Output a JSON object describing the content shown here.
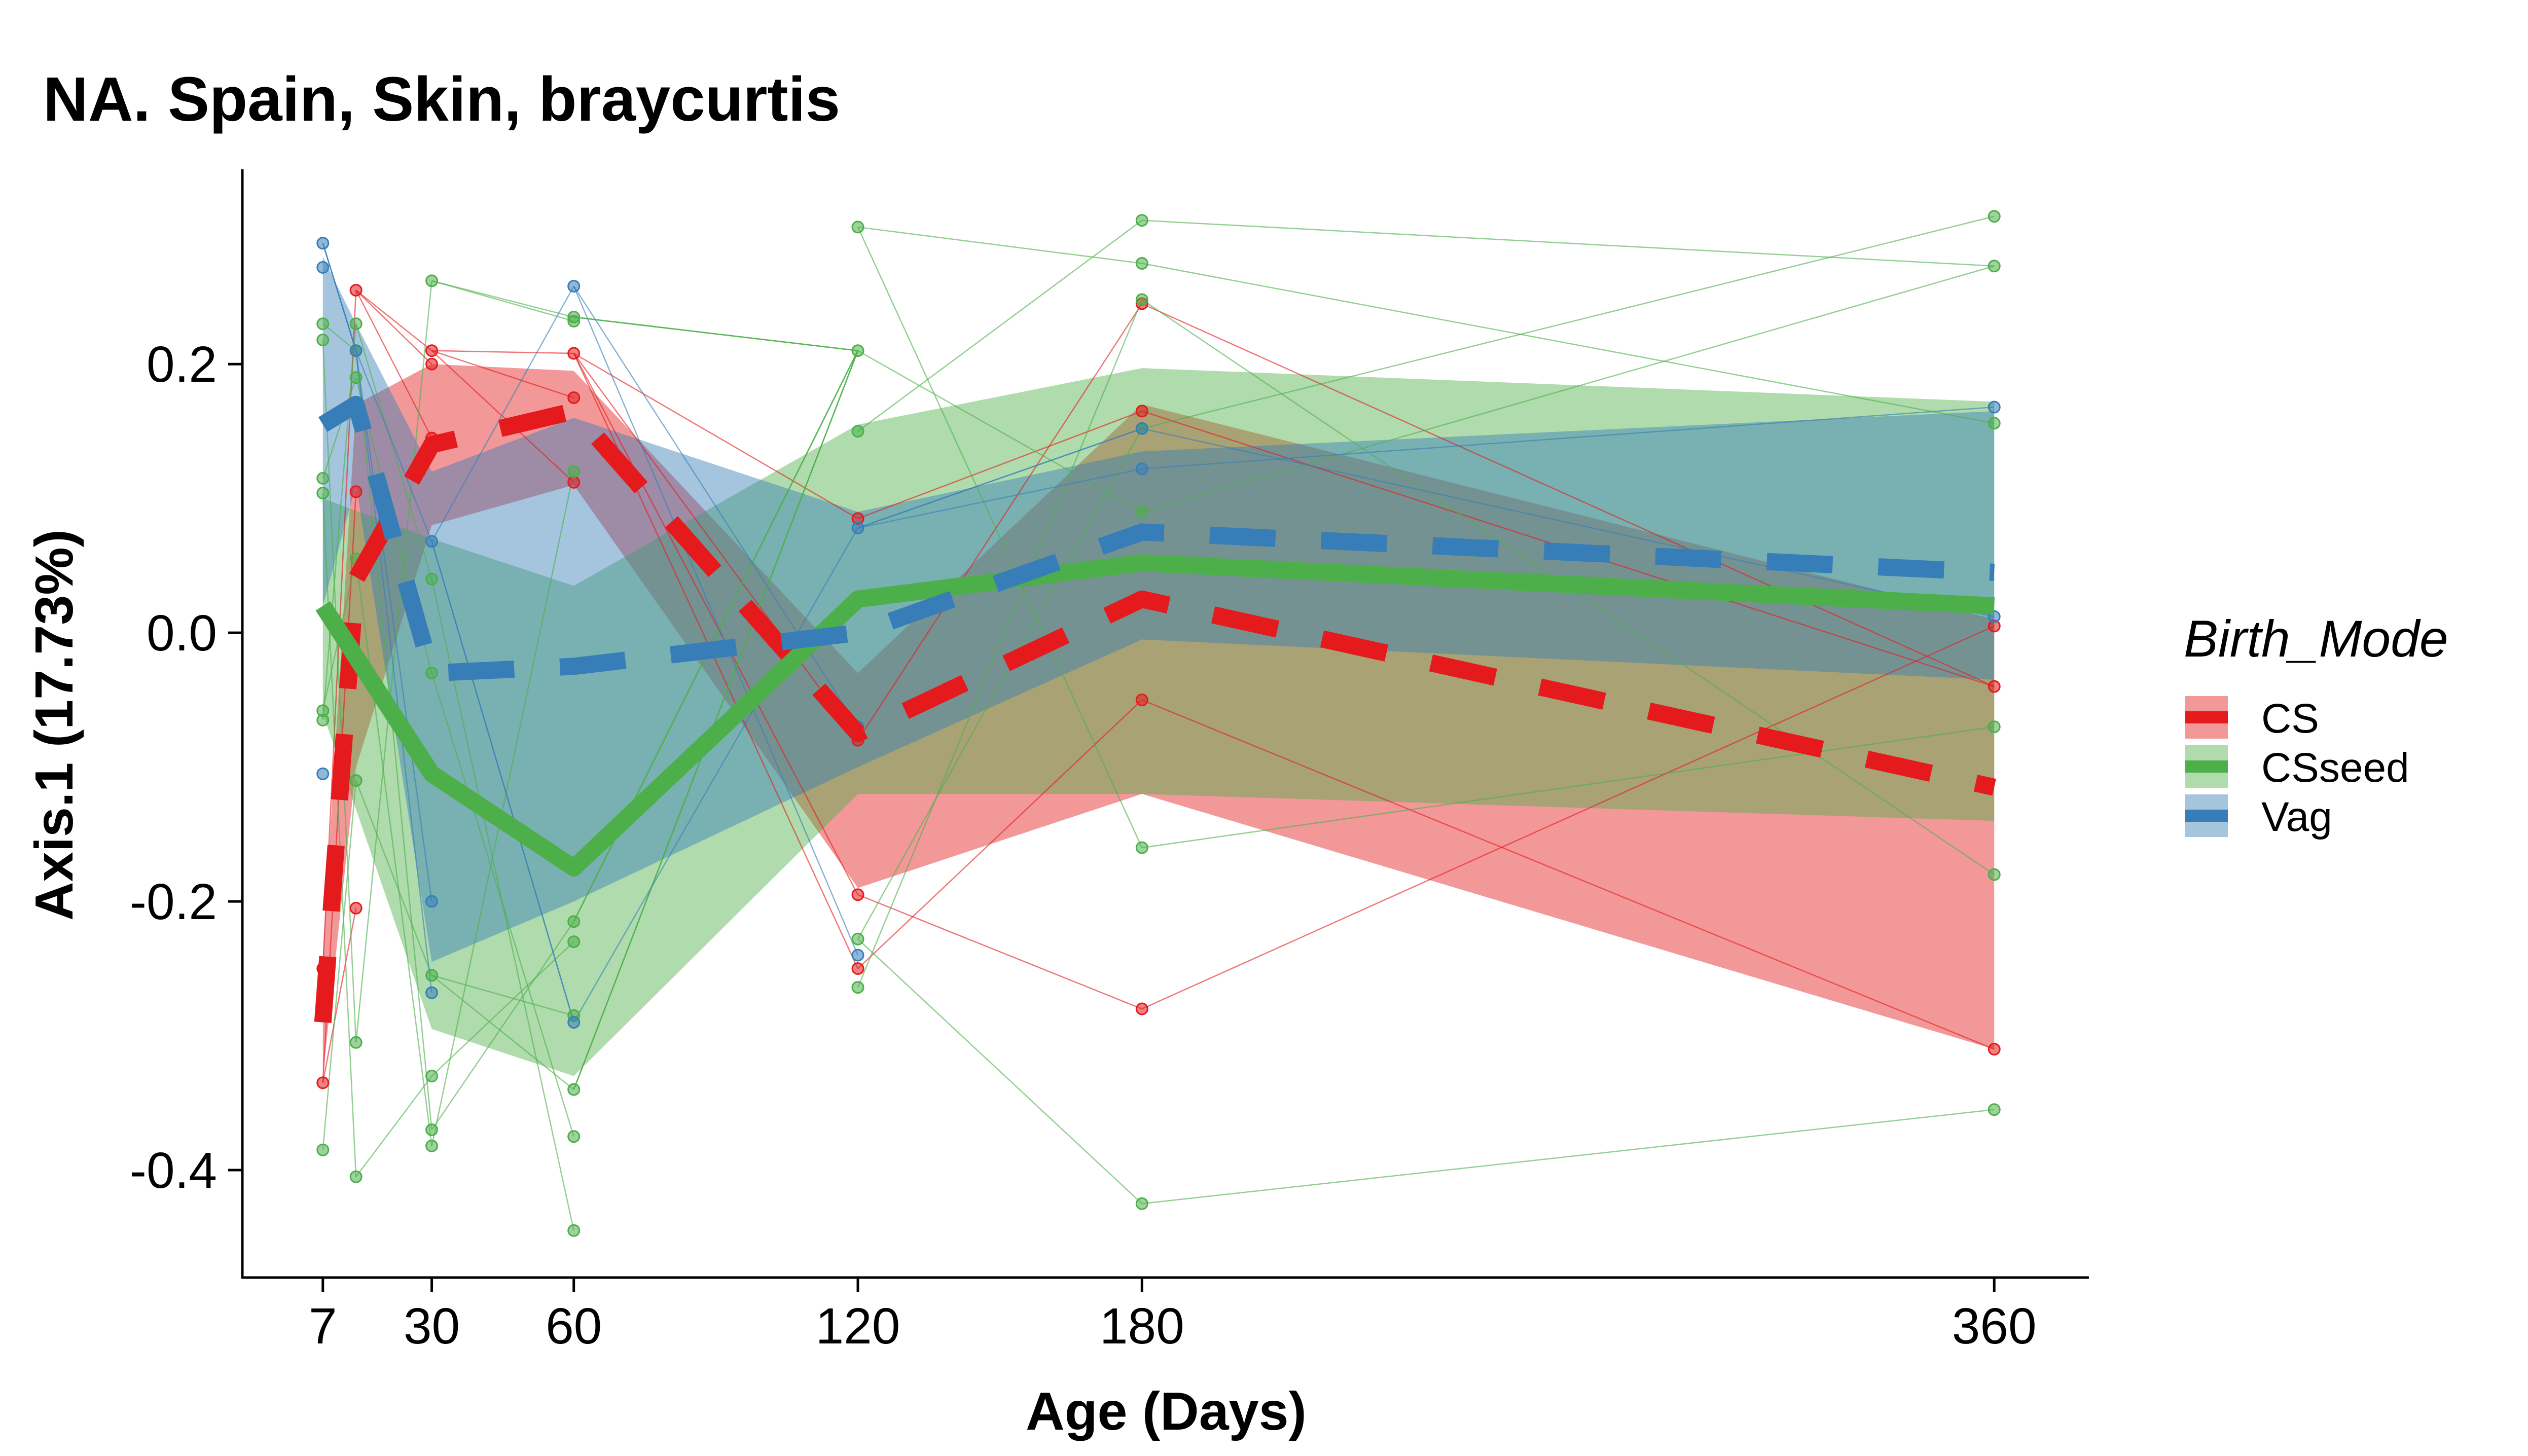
{
  "chart_data": {
    "type": "line",
    "title": "NA. Spain, Skin, braycurtis",
    "xlabel": "Age (Days)",
    "ylabel": "Axis.1 (17.73%)",
    "x_ticks": [
      7,
      30,
      60,
      120,
      180,
      360
    ],
    "x_tick_labels": [
      "7",
      "30",
      "60",
      "120",
      "180",
      "360"
    ],
    "y_ticks": [
      -0.4,
      -0.2,
      0.0,
      0.2
    ],
    "y_tick_labels": [
      "-0.4",
      "-0.2",
      "0.0",
      "0.2"
    ],
    "xlim": [
      -10,
      380
    ],
    "ylim": [
      -0.48,
      0.345
    ],
    "grid": false,
    "legend": {
      "title": "Birth_Mode",
      "placement": "right"
    },
    "series": [
      {
        "name": "CS",
        "color": "#E41A1C",
        "dash": "long",
        "x": [
          7,
          14,
          30,
          60,
          120,
          180,
          360
        ],
        "mean": [
          -0.29,
          0.04,
          0.14,
          0.165,
          -0.075,
          0.025,
          -0.115
        ],
        "ribbon_lower": [
          -0.33,
          -0.1,
          0.08,
          0.11,
          -0.19,
          -0.12,
          -0.31
        ],
        "ribbon_upper": [
          -0.24,
          0.17,
          0.2,
          0.195,
          -0.03,
          0.17,
          0.01
        ],
        "points": [
          [
            7,
            -0.335
          ],
          [
            7,
            -0.25
          ],
          [
            14,
            0.255
          ],
          [
            14,
            0.105
          ],
          [
            14,
            -0.205
          ],
          [
            30,
            0.21
          ],
          [
            30,
            0.145
          ],
          [
            30,
            0.2
          ],
          [
            60,
            0.208
          ],
          [
            60,
            0.175
          ],
          [
            60,
            0.112
          ],
          [
            120,
            0.085
          ],
          [
            120,
            -0.08
          ],
          [
            120,
            -0.195
          ],
          [
            120,
            -0.25
          ],
          [
            180,
            0.245
          ],
          [
            180,
            0.165
          ],
          [
            180,
            -0.05
          ],
          [
            180,
            -0.28
          ],
          [
            360,
            0.005
          ],
          [
            360,
            -0.04
          ],
          [
            360,
            -0.31
          ]
        ]
      },
      {
        "name": "CSseed",
        "color": "#4DAF4A",
        "dash": "solid",
        "x": [
          7,
          30,
          60,
          120,
          180,
          360
        ],
        "mean": [
          0.02,
          -0.105,
          -0.175,
          0.025,
          0.052,
          0.02
        ],
        "ribbon_lower": [
          -0.06,
          -0.295,
          -0.33,
          -0.12,
          -0.12,
          -0.14
        ],
        "ribbon_upper": [
          0.1,
          0.07,
          0.035,
          0.155,
          0.197,
          0.172
        ],
        "points": [
          [
            7,
            0.23
          ],
          [
            7,
            0.218
          ],
          [
            7,
            0.115
          ],
          [
            7,
            0.104
          ],
          [
            7,
            -0.058
          ],
          [
            7,
            -0.065
          ],
          [
            7,
            -0.385
          ],
          [
            14,
            0.23
          ],
          [
            14,
            0.21
          ],
          [
            14,
            0.19
          ],
          [
            14,
            0.055
          ],
          [
            14,
            -0.11
          ],
          [
            14,
            -0.305
          ],
          [
            14,
            -0.405
          ],
          [
            30,
            0.262
          ],
          [
            30,
            0.04
          ],
          [
            30,
            -0.03
          ],
          [
            30,
            -0.255
          ],
          [
            30,
            -0.33
          ],
          [
            30,
            -0.37
          ],
          [
            30,
            -0.382
          ],
          [
            60,
            0.235
          ],
          [
            60,
            0.232
          ],
          [
            60,
            0.12
          ],
          [
            60,
            -0.215
          ],
          [
            60,
            -0.23
          ],
          [
            60,
            -0.285
          ],
          [
            60,
            -0.34
          ],
          [
            60,
            -0.375
          ],
          [
            60,
            -0.445
          ],
          [
            120,
            0.302
          ],
          [
            120,
            0.21
          ],
          [
            120,
            0.15
          ],
          [
            120,
            -0.228
          ],
          [
            120,
            -0.264
          ],
          [
            180,
            0.307
          ],
          [
            180,
            0.275
          ],
          [
            180,
            0.248
          ],
          [
            180,
            0.152
          ],
          [
            180,
            0.09
          ],
          [
            180,
            -0.16
          ],
          [
            180,
            -0.425
          ],
          [
            360,
            0.31
          ],
          [
            360,
            0.273
          ],
          [
            360,
            0.156
          ],
          [
            360,
            -0.07
          ],
          [
            360,
            -0.18
          ],
          [
            360,
            -0.355
          ]
        ]
      },
      {
        "name": "Vag",
        "color": "#377EB8",
        "dash": "long",
        "x": [
          7,
          14,
          30,
          60,
          120,
          180,
          360
        ],
        "mean": [
          0.155,
          0.17,
          -0.03,
          -0.025,
          0.0,
          0.075,
          0.045
        ],
        "ribbon_lower": [
          0.02,
          0.11,
          -0.245,
          -0.2,
          -0.1,
          -0.005,
          -0.035
        ],
        "ribbon_upper": [
          0.28,
          0.23,
          0.12,
          0.16,
          0.09,
          0.135,
          0.165
        ],
        "points": [
          [
            7,
            0.29
          ],
          [
            7,
            0.272
          ],
          [
            7,
            -0.105
          ],
          [
            14,
            0.21
          ],
          [
            30,
            0.068
          ],
          [
            30,
            -0.2
          ],
          [
            30,
            -0.268
          ],
          [
            60,
            0.258
          ],
          [
            60,
            -0.29
          ],
          [
            120,
            0.078
          ],
          [
            120,
            -0.24
          ],
          [
            120,
            -0.07
          ],
          [
            180,
            0.122
          ],
          [
            180,
            0.152
          ],
          [
            360,
            0.012
          ],
          [
            360,
            0.168
          ]
        ]
      }
    ]
  }
}
